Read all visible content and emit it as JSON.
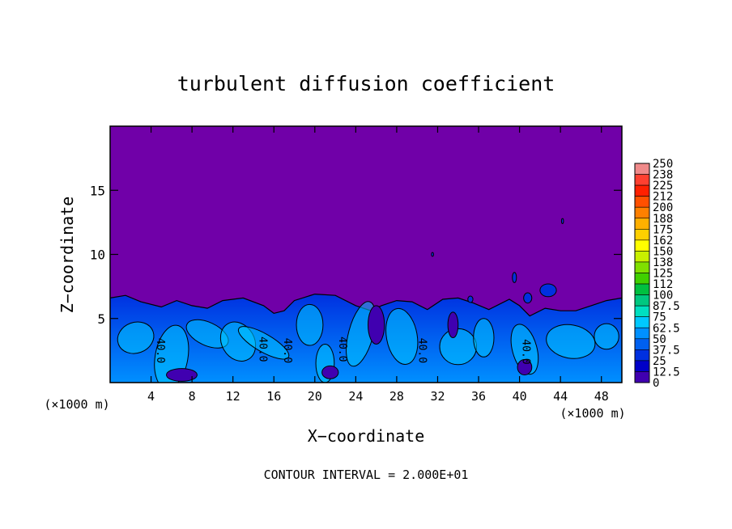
{
  "chart_data": {
    "type": "heatmap",
    "title": "turbulent diffusion coefficient",
    "xlabel": "X−coordinate",
    "ylabel": "Z−coordinate",
    "x_unit": "(×1000 m)",
    "x_unit_right": "(×1000 m)",
    "footer": "CONTOUR INTERVAL = 2.000E+01",
    "xlim": [
      0,
      50
    ],
    "ylim": [
      0,
      20
    ],
    "x_ticks": [
      4,
      8,
      12,
      16,
      20,
      24,
      28,
      32,
      36,
      40,
      44,
      48
    ],
    "y_ticks": [
      5,
      10,
      15
    ],
    "contour_labels": [
      {
        "text": "40.0",
        "x": 4.6,
        "z": 2.5
      },
      {
        "text": "40.0",
        "x": 14.6,
        "z": 2.6
      },
      {
        "text": "40.0",
        "x": 17.0,
        "z": 2.5
      },
      {
        "text": "40.0",
        "x": 22.4,
        "z": 2.6
      },
      {
        "text": "40.0",
        "x": 30.2,
        "z": 2.5
      },
      {
        "text": "40.0",
        "x": 40.3,
        "z": 2.4
      }
    ],
    "colorbar": {
      "labels": [
        "250",
        "238",
        "225",
        "212",
        "200",
        "188",
        "175",
        "162",
        "150",
        "138",
        "125",
        "112",
        "100",
        "87.5",
        "75",
        "62.5",
        "50",
        "37.5",
        "25",
        "12.5",
        "0"
      ],
      "colors": [
        "#f08a8a",
        "#ff4030",
        "#ff2000",
        "#ff5000",
        "#ff8000",
        "#ffb000",
        "#ffd000",
        "#ffff00",
        "#c8f000",
        "#80e000",
        "#40d000",
        "#00c040",
        "#00c880",
        "#00e0c0",
        "#00c8ff",
        "#0090ff",
        "#0060f0",
        "#0030e0",
        "#0000c8",
        "#4000b0",
        "#7000a8"
      ]
    },
    "background_color": "#7000a8"
  }
}
